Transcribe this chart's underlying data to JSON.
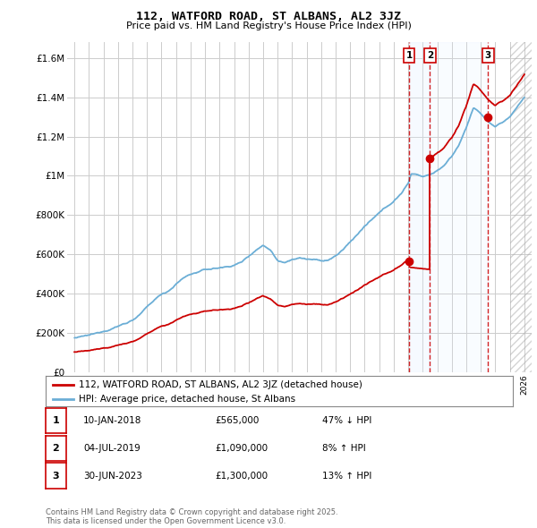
{
  "title": "112, WATFORD ROAD, ST ALBANS, AL2 3JZ",
  "subtitle": "Price paid vs. HM Land Registry's House Price Index (HPI)",
  "hpi_label": "HPI: Average price, detached house, St Albans",
  "price_label": "112, WATFORD ROAD, ST ALBANS, AL2 3JZ (detached house)",
  "hpi_color": "#6baed6",
  "price_color": "#cc0000",
  "sale1": {
    "date_x": 2018.05,
    "price": 565000,
    "label": "1",
    "pct": "47% ↓ HPI",
    "date_str": "10-JAN-2018"
  },
  "sale2": {
    "date_x": 2019.5,
    "price": 1090000,
    "label": "2",
    "pct": "8% ↑ HPI",
    "date_str": "04-JUL-2019"
  },
  "sale3": {
    "date_x": 2023.5,
    "price": 1300000,
    "label": "3",
    "pct": "13% ↑ HPI",
    "date_str": "30-JUN-2023"
  },
  "ylim": [
    0,
    1680000
  ],
  "xlim": [
    1994.5,
    2026.5
  ],
  "yticks": [
    0,
    200000,
    400000,
    600000,
    800000,
    1000000,
    1200000,
    1400000,
    1600000
  ],
  "ytick_labels": [
    "£0",
    "£200K",
    "£400K",
    "£600K",
    "£800K",
    "£1M",
    "£1.2M",
    "£1.4M",
    "£1.6M"
  ],
  "footer": "Contains HM Land Registry data © Crown copyright and database right 2025.\nThis data is licensed under the Open Government Licence v3.0.",
  "bg_color": "#ffffff",
  "grid_color": "#cccccc",
  "shade_color": "#ddeeff"
}
